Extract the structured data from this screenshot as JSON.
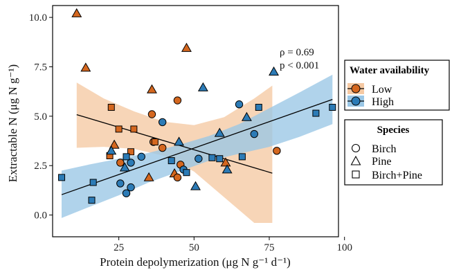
{
  "chart_data": {
    "type": "scatter",
    "xlabel": "Protein depolymerization (μg N g⁻¹ d⁻¹)",
    "ylabel": "Extractable N (μg N g⁻¹)",
    "xlim": [
      3,
      98
    ],
    "ylim": [
      -1.1,
      10.6
    ],
    "x_ticks": [
      25,
      50,
      75,
      100
    ],
    "y_ticks": [
      0.0,
      2.5,
      5.0,
      7.5,
      10.0
    ],
    "x_tick_labels": [
      "25",
      "50",
      "75",
      "100"
    ],
    "y_tick_labels": [
      "0.0",
      "2.5",
      "5.0",
      "7.5",
      "10.0"
    ],
    "grid": false,
    "annotation": {
      "lines": [
        "ρ = 0.69",
        "p < 0.001"
      ]
    },
    "fill_colors": {
      "Low": "#d4671f",
      "High": "#2c7bb6"
    },
    "band_colors": {
      "Low": "#f5c9a3",
      "High": "#9ac7e6"
    },
    "series": [
      {
        "name": "Low",
        "fit": {
          "x": [
            11,
            76
          ],
          "y": [
            5.08,
            2.12
          ]
        },
        "band": {
          "x": [
            11,
            20,
            30,
            40,
            50,
            60,
            70,
            76
          ],
          "upper": [
            6.7,
            5.9,
            5.25,
            4.72,
            4.55,
            4.95,
            5.9,
            6.55
          ],
          "lower": [
            3.4,
            3.45,
            3.35,
            3.0,
            2.2,
            0.9,
            -0.4,
            -0.4
          ]
        },
        "points": [
          {
            "x": 11,
            "y": 10.2,
            "species": "Pine"
          },
          {
            "x": 14,
            "y": 7.45,
            "species": "Pine"
          },
          {
            "x": 47.5,
            "y": 8.45,
            "species": "Pine"
          },
          {
            "x": 36,
            "y": 6.35,
            "species": "Pine"
          },
          {
            "x": 44.5,
            "y": 5.8,
            "species": "Birch"
          },
          {
            "x": 22.5,
            "y": 5.45,
            "species": "Birch+Pine"
          },
          {
            "x": 36,
            "y": 5.1,
            "species": "Birch"
          },
          {
            "x": 25,
            "y": 4.35,
            "species": "Birch+Pine"
          },
          {
            "x": 30,
            "y": 4.35,
            "species": "Birch+Pine"
          },
          {
            "x": 36.5,
            "y": 3.7,
            "species": "Birch"
          },
          {
            "x": 37,
            "y": 3.7,
            "species": "Birch+Pine"
          },
          {
            "x": 23.5,
            "y": 3.55,
            "species": "Pine"
          },
          {
            "x": 39.5,
            "y": 3.4,
            "species": "Birch"
          },
          {
            "x": 29,
            "y": 3.2,
            "species": "Birch+Pine"
          },
          {
            "x": 77.5,
            "y": 3.25,
            "species": "Birch"
          },
          {
            "x": 22,
            "y": 3.0,
            "species": "Birch+Pine"
          },
          {
            "x": 25.5,
            "y": 2.65,
            "species": "Birch"
          },
          {
            "x": 60.5,
            "y": 2.65,
            "species": "Pine"
          },
          {
            "x": 45.5,
            "y": 2.55,
            "species": "Birch"
          },
          {
            "x": 43.5,
            "y": 2.1,
            "species": "Pine"
          },
          {
            "x": 44.5,
            "y": 1.9,
            "species": "Birch"
          },
          {
            "x": 35,
            "y": 1.9,
            "species": "Pine"
          }
        ]
      },
      {
        "name": "High",
        "fit": {
          "x": [
            6,
            96
          ],
          "y": [
            1.03,
            5.85
          ]
        },
        "band": {
          "x": [
            6,
            15,
            25,
            35,
            45,
            55,
            65,
            75,
            85,
            96
          ],
          "upper": [
            2.25,
            2.55,
            2.85,
            3.15,
            3.55,
            4.0,
            4.6,
            5.4,
            6.2,
            7.1
          ],
          "lower": [
            -0.15,
            0.4,
            1.0,
            1.65,
            2.2,
            2.75,
            3.1,
            3.45,
            3.95,
            4.6
          ]
        },
        "points": [
          {
            "x": 53,
            "y": 6.45,
            "species": "Pine"
          },
          {
            "x": 76.5,
            "y": 7.25,
            "species": "Pine"
          },
          {
            "x": 65,
            "y": 5.6,
            "species": "Birch"
          },
          {
            "x": 71.5,
            "y": 5.45,
            "species": "Birch+Pine"
          },
          {
            "x": 96,
            "y": 5.45,
            "species": "Birch+Pine"
          },
          {
            "x": 90.5,
            "y": 5.15,
            "species": "Birch+Pine"
          },
          {
            "x": 67.5,
            "y": 4.95,
            "species": "Pine"
          },
          {
            "x": 39.5,
            "y": 4.7,
            "species": "Birch"
          },
          {
            "x": 58.5,
            "y": 4.15,
            "species": "Pine"
          },
          {
            "x": 70,
            "y": 4.1,
            "species": "Birch"
          },
          {
            "x": 45,
            "y": 3.7,
            "species": "Pine"
          },
          {
            "x": 22.5,
            "y": 3.25,
            "species": "Pine"
          },
          {
            "x": 66,
            "y": 2.95,
            "species": "Birch+Pine"
          },
          {
            "x": 32.5,
            "y": 2.95,
            "species": "Birch"
          },
          {
            "x": 51.5,
            "y": 2.85,
            "species": "Birch"
          },
          {
            "x": 56,
            "y": 2.9,
            "species": "Birch+Pine"
          },
          {
            "x": 58.5,
            "y": 2.85,
            "species": "Birch+Pine"
          },
          {
            "x": 42.5,
            "y": 2.75,
            "species": "Birch+Pine"
          },
          {
            "x": 29,
            "y": 2.65,
            "species": "Birch"
          },
          {
            "x": 27.5,
            "y": 2.95,
            "species": "Birch+Pine"
          },
          {
            "x": 61,
            "y": 2.3,
            "species": "Pine"
          },
          {
            "x": 27,
            "y": 2.4,
            "species": "Pine"
          },
          {
            "x": 46.5,
            "y": 2.3,
            "species": "Birch"
          },
          {
            "x": 47.5,
            "y": 2.15,
            "species": "Birch+Pine"
          },
          {
            "x": 6,
            "y": 1.9,
            "species": "Birch+Pine"
          },
          {
            "x": 16.5,
            "y": 1.65,
            "species": "Birch+Pine"
          },
          {
            "x": 25.5,
            "y": 1.6,
            "species": "Birch"
          },
          {
            "x": 29,
            "y": 1.4,
            "species": "Birch"
          },
          {
            "x": 50.5,
            "y": 1.45,
            "species": "Pine"
          },
          {
            "x": 27.5,
            "y": 1.1,
            "species": "Birch"
          },
          {
            "x": 16,
            "y": 0.75,
            "species": "Birch+Pine"
          }
        ]
      }
    ]
  },
  "legend": {
    "water": {
      "title": "Water availability",
      "items": [
        "Low",
        "High"
      ]
    },
    "species": {
      "title": "Species",
      "items": [
        "Birch",
        "Pine",
        "Birch+Pine"
      ]
    }
  }
}
